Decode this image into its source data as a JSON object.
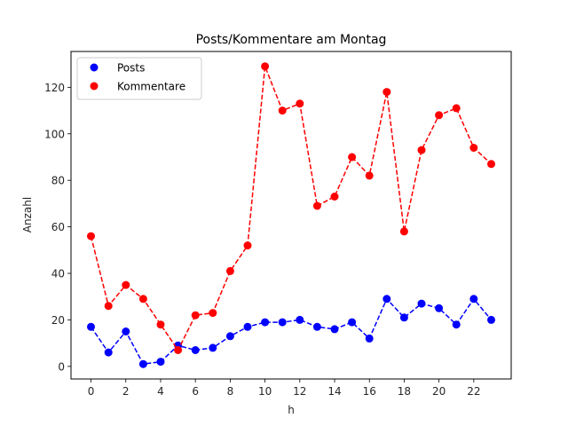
{
  "chart_data": {
    "type": "line",
    "title": "Posts/Kommentare am Montag",
    "xlabel": "h",
    "ylabel": "Anzahl",
    "x": [
      0,
      1,
      2,
      3,
      4,
      5,
      6,
      7,
      8,
      9,
      10,
      11,
      12,
      13,
      14,
      15,
      16,
      17,
      18,
      19,
      20,
      21,
      22,
      23
    ],
    "series": [
      {
        "name": "Posts",
        "color": "#0000ff",
        "linestyle": "dashed",
        "marker": "circle",
        "values": [
          17,
          6,
          15,
          1,
          2,
          9,
          7,
          8,
          13,
          17,
          19,
          19,
          20,
          17,
          16,
          19,
          12,
          29,
          21,
          27,
          25,
          18,
          29,
          20
        ]
      },
      {
        "name": "Kommentare",
        "color": "#ff0000",
        "linestyle": "dashed",
        "marker": "circle",
        "values": [
          56,
          26,
          35,
          29,
          18,
          7,
          22,
          23,
          41,
          52,
          129,
          110,
          113,
          69,
          73,
          90,
          82,
          118,
          58,
          93,
          108,
          111,
          94,
          87
        ]
      }
    ],
    "xticks": [
      0,
      2,
      4,
      6,
      8,
      10,
      12,
      14,
      16,
      18,
      20,
      22
    ],
    "yticks": [
      0,
      20,
      40,
      60,
      80,
      100,
      120
    ],
    "xlim": [
      -1.15,
      24.15
    ],
    "ylim": [
      -5.4,
      135.4
    ],
    "grid": false,
    "legend_position": "upper left"
  }
}
